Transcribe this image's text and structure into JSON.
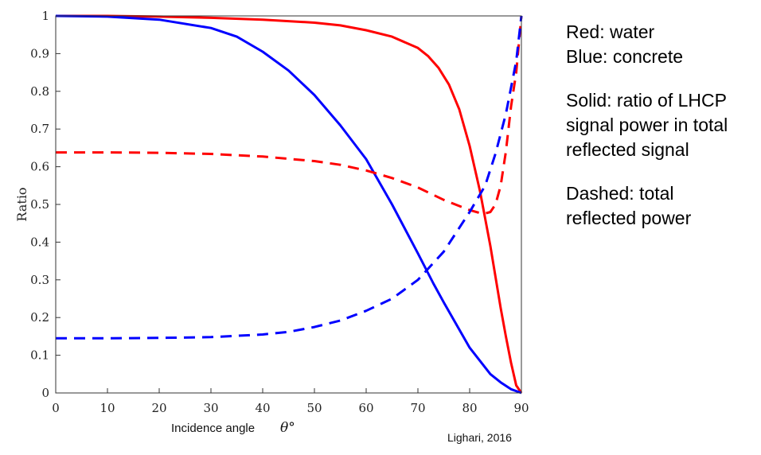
{
  "chart_data": {
    "type": "line",
    "xlabel": "Incidence angle",
    "xlabel_symbol": "θ°",
    "ylabel": "Ratio",
    "xlim": [
      0,
      90
    ],
    "ylim": [
      0,
      1
    ],
    "x_ticks": [
      "0",
      "10",
      "20",
      "30",
      "40",
      "50",
      "60",
      "70",
      "80",
      "90"
    ],
    "y_ticks": [
      "0",
      "0.1",
      "0.2",
      "0.3",
      "0.4",
      "0.5",
      "0.6",
      "0.7",
      "0.8",
      "0.9",
      "1"
    ],
    "grid": false,
    "series": [
      {
        "color": "#ff0000",
        "style": "solid",
        "x": [
          0,
          10,
          20,
          30,
          40,
          50,
          55,
          60,
          65,
          70,
          72,
          74,
          76,
          78,
          80,
          82,
          84,
          86,
          87,
          88,
          89,
          90
        ],
        "y": [
          1.0,
          1.0,
          0.998,
          0.995,
          0.99,
          0.982,
          0.975,
          0.962,
          0.945,
          0.915,
          0.893,
          0.862,
          0.818,
          0.752,
          0.655,
          0.535,
          0.39,
          0.225,
          0.15,
          0.08,
          0.02,
          0.0
        ]
      },
      {
        "color": "#0000ff",
        "style": "solid",
        "x": [
          0,
          10,
          20,
          30,
          35,
          40,
          45,
          50,
          55,
          60,
          65,
          70,
          73,
          75,
          80,
          84,
          86,
          88,
          90
        ],
        "y": [
          1.0,
          0.998,
          0.99,
          0.968,
          0.945,
          0.905,
          0.855,
          0.79,
          0.71,
          0.62,
          0.5,
          0.37,
          0.29,
          0.24,
          0.12,
          0.05,
          0.028,
          0.01,
          0.0
        ]
      },
      {
        "color": "#ff0000",
        "style": "dashed",
        "x": [
          0,
          10,
          20,
          30,
          40,
          50,
          55,
          60,
          65,
          70,
          75,
          80,
          82,
          83,
          84,
          85,
          86,
          87,
          88,
          89,
          90
        ],
        "y": [
          0.638,
          0.638,
          0.637,
          0.634,
          0.627,
          0.615,
          0.605,
          0.59,
          0.57,
          0.545,
          0.512,
          0.485,
          0.477,
          0.476,
          0.48,
          0.5,
          0.55,
          0.64,
          0.76,
          0.85,
          1.0
        ]
      },
      {
        "color": "#0000ff",
        "style": "dashed",
        "x": [
          0,
          10,
          20,
          30,
          40,
          45,
          50,
          55,
          60,
          65,
          70,
          73,
          75,
          80,
          83,
          85,
          87,
          89,
          90
        ],
        "y": [
          0.145,
          0.145,
          0.146,
          0.148,
          0.155,
          0.162,
          0.175,
          0.192,
          0.218,
          0.25,
          0.3,
          0.345,
          0.375,
          0.48,
          0.55,
          0.635,
          0.74,
          0.88,
          1.0
        ]
      }
    ]
  },
  "legend": {
    "line1": "Red: water",
    "line2": "Blue: concrete",
    "line3": "Solid: ratio of LHCP",
    "line4": "signal power in total",
    "line5": "reflected signal",
    "line6": "Dashed: total",
    "line7": "reflected power"
  },
  "credit": "Lighari, 2016"
}
